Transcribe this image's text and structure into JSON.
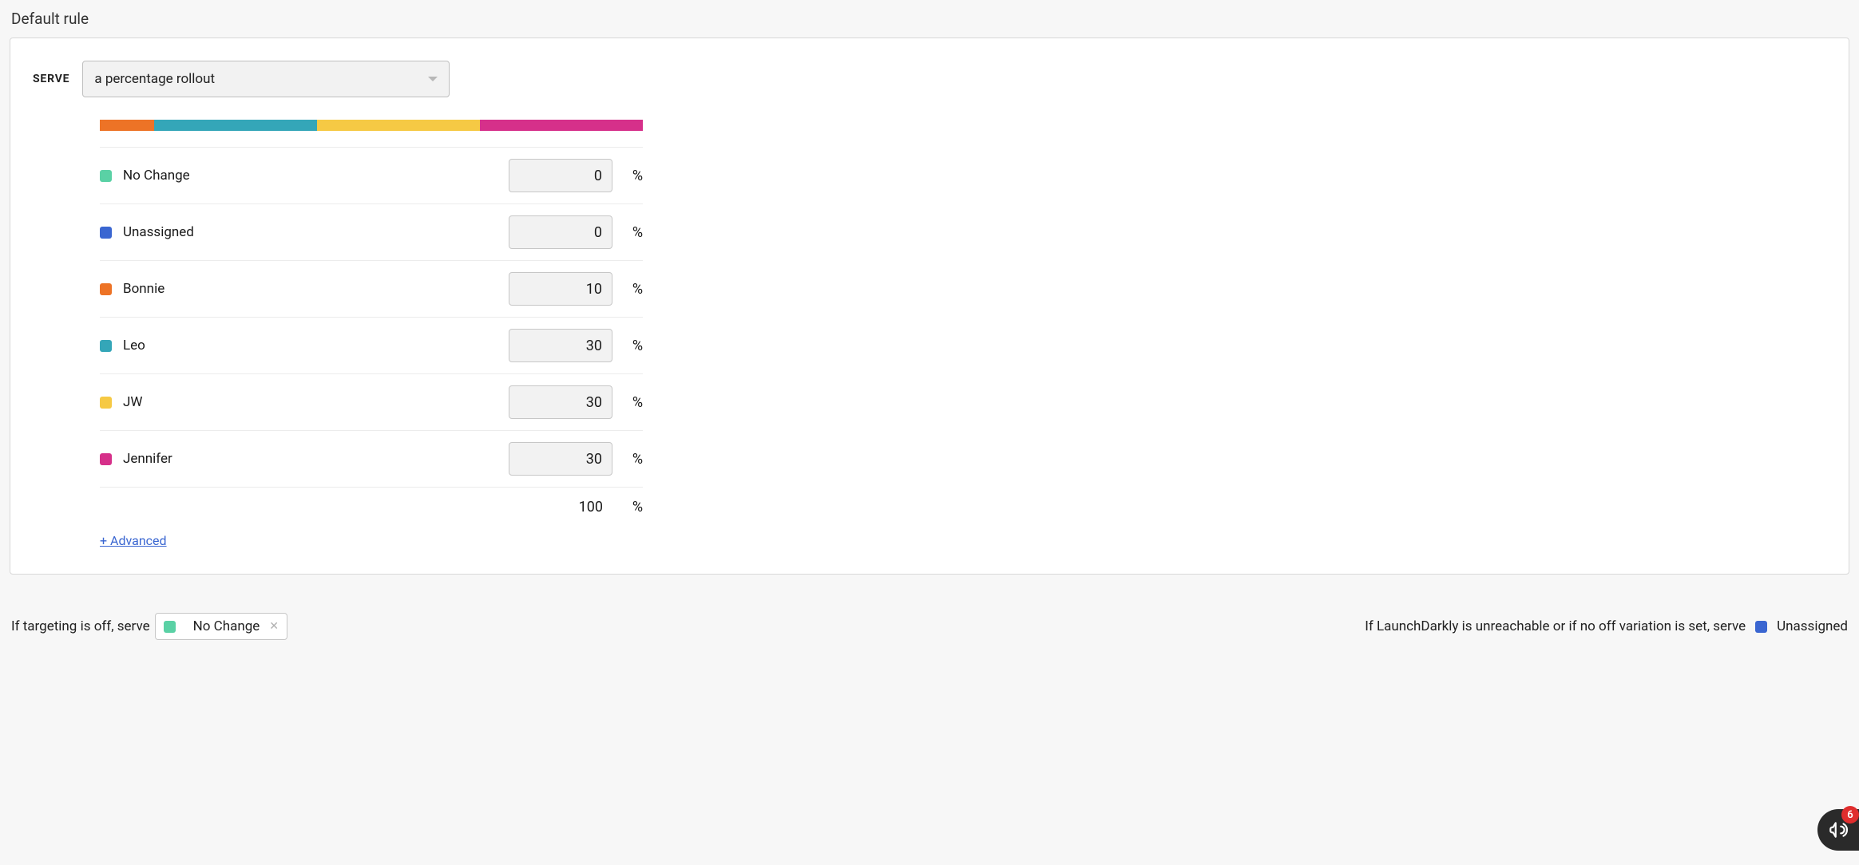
{
  "section_title": "Default rule",
  "serve": {
    "label": "SERVE",
    "selected": "a percentage rollout"
  },
  "rollout": {
    "variations": [
      {
        "label": "No Change",
        "value": 0,
        "color": "#5ad1a5"
      },
      {
        "label": "Unassigned",
        "value": 0,
        "color": "#3a66d1"
      },
      {
        "label": "Bonnie",
        "value": 10,
        "color": "#ed7326"
      },
      {
        "label": "Leo",
        "value": 30,
        "color": "#34a6b8"
      },
      {
        "label": "JW",
        "value": 30,
        "color": "#f6c944"
      },
      {
        "label": "Jennifer",
        "value": 30,
        "color": "#d6308a"
      }
    ],
    "total": 100,
    "percent_sign": "%",
    "advanced_label": "+ Advanced"
  },
  "footer": {
    "targeting_off_prefix": "If targeting is off, serve",
    "targeting_off_variation": {
      "label": "No Change",
      "color": "#5ad1a5"
    },
    "unreachable_prefix": "If LaunchDarkly is unreachable or if no off variation is set, serve",
    "unreachable_variation": {
      "label": "Unassigned",
      "color": "#3a66d1"
    }
  },
  "announce": {
    "badge": 6
  },
  "colors": {
    "page_bg": "#f7f7f7",
    "card_bg": "#ffffff",
    "card_border": "#d8d8d8",
    "input_bg": "#f2f2f2",
    "input_border": "#c7c7c7",
    "row_border": "#ececec",
    "link": "#3a66d1",
    "text": "#1a1a1a"
  }
}
